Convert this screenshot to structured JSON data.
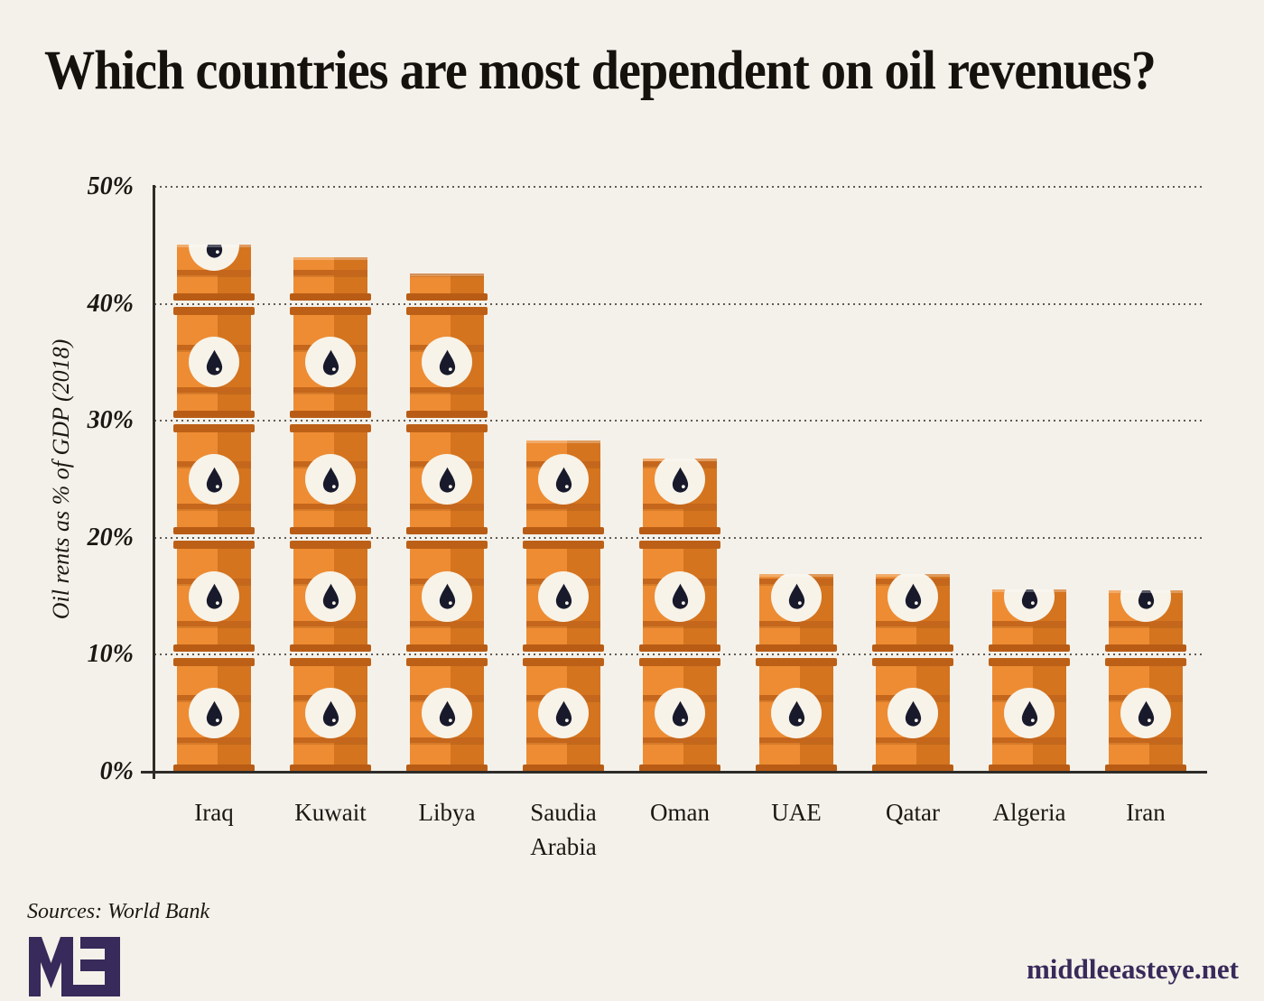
{
  "title": "Which countries are most dependent on oil revenues?",
  "chart_data": {
    "type": "bar",
    "title": "Which countries are most dependent on oil revenues?",
    "xlabel": "",
    "ylabel": "Oil rents as % of GDP (2018)",
    "ylim": [
      0,
      50
    ],
    "ytick_values": [
      0,
      10,
      20,
      30,
      40,
      50
    ],
    "ytick_labels": [
      "0%",
      "10%",
      "20%",
      "30%",
      "40%",
      "50%"
    ],
    "grid": "horizontal dotted lines at each 10%",
    "legend_position": "none",
    "categories": [
      "Iraq",
      "Kuwait",
      "Libya",
      "Saudia Arabia",
      "Oman",
      "UAE",
      "Qatar",
      "Algeria",
      "Iran"
    ],
    "values": [
      45.1,
      44.0,
      42.6,
      28.3,
      26.8,
      16.9,
      16.9,
      15.6,
      15.5
    ],
    "bar_style": "bars drawn as stacked orange oil barrels, one barrel per 10%, topmost barrel cut at the value",
    "drop_icon_levels": [
      [
        5,
        15,
        25,
        35,
        45
      ],
      [
        5,
        15,
        25,
        35
      ],
      [
        5,
        15,
        25,
        35
      ],
      [
        5,
        15,
        25
      ],
      [
        5,
        15,
        25
      ],
      [
        5,
        15
      ],
      [
        5,
        15
      ],
      [
        5,
        15
      ],
      [
        5,
        15
      ]
    ]
  },
  "footer": {
    "sources": "Sources: World Bank",
    "logo_text": "MEE",
    "website": "middleeasteye.net"
  },
  "colors": {
    "background": "#f4f1ea",
    "text": "#1b1813",
    "axis": "#2e2c29",
    "barrel_light": "#ee8c33",
    "barrel_dark": "#d4741f",
    "barrel_rim": "#bd6017",
    "barrel_rib": "#c4661c",
    "drop_circle": "#f7f3e9",
    "oil_drop": "#181a2c",
    "brand_purple": "#382a5a"
  }
}
